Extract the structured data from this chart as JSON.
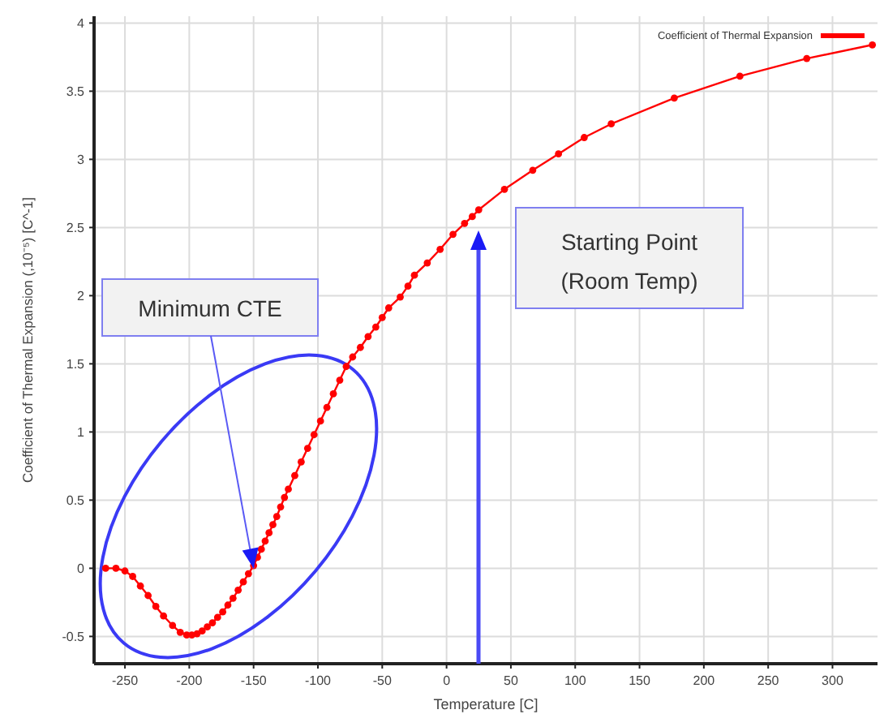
{
  "chart_data": {
    "type": "line",
    "xlabel": "Temperature  [C]",
    "ylabel": "Coefficient of Thermal Expansion  (,10⁻⁵)  [C^-1]",
    "x": [
      -265,
      -257,
      -250,
      -244,
      -238,
      -232,
      -226,
      -220,
      -213,
      -207,
      -202,
      -198,
      -194,
      -190,
      -186,
      -182,
      -178,
      -174,
      -170,
      -166,
      -162,
      -158,
      -154,
      -150,
      -147,
      -144,
      -141,
      -138,
      -135,
      -132,
      -129,
      -126,
      -123,
      -118,
      -113,
      -108,
      -103,
      -98,
      -93,
      -88,
      -83,
      -78,
      -73,
      -67,
      -61,
      -55,
      -50,
      -45,
      -36,
      -30,
      -25,
      -15,
      -5,
      5,
      14,
      20,
      25,
      45,
      67,
      87,
      107,
      128,
      177,
      228,
      280,
      331
    ],
    "series": [
      {
        "name": "Coefficient of Thermal Expansion",
        "color": "#ff0000",
        "values": [
          0,
          0,
          -0.02,
          -0.06,
          -0.13,
          -0.2,
          -0.28,
          -0.35,
          -0.42,
          -0.47,
          -0.49,
          -0.49,
          -0.48,
          -0.46,
          -0.43,
          -0.4,
          -0.36,
          -0.32,
          -0.27,
          -0.22,
          -0.16,
          -0.1,
          -0.04,
          0.02,
          0.08,
          0.14,
          0.2,
          0.26,
          0.32,
          0.38,
          0.45,
          0.52,
          0.58,
          0.68,
          0.78,
          0.88,
          0.98,
          1.08,
          1.18,
          1.28,
          1.38,
          1.48,
          1.55,
          1.62,
          1.7,
          1.77,
          1.84,
          1.91,
          1.99,
          2.07,
          2.15,
          2.24,
          2.34,
          2.45,
          2.53,
          2.58,
          2.63,
          2.78,
          2.92,
          3.04,
          3.16,
          3.26,
          3.45,
          3.61,
          3.74,
          3.84
        ]
      }
    ],
    "xlim": [
      -274,
      335
    ],
    "xticks": [
      -250,
      -200,
      -150,
      -100,
      -50,
      0,
      50,
      100,
      150,
      200,
      250,
      300
    ],
    "ylim": [
      -0.7,
      4.05
    ],
    "yticks": [
      -0.5,
      0,
      0.5,
      1,
      1.5,
      2,
      2.5,
      3,
      3.5,
      4
    ],
    "annotations": [
      {
        "text": "Minimum CTE",
        "x": -150,
        "y": 0
      },
      "Starting Point\n(Room Temp)"
    ],
    "grid": true,
    "legend": "top right",
    "marker": "circle",
    "line_style": "solid"
  }
}
